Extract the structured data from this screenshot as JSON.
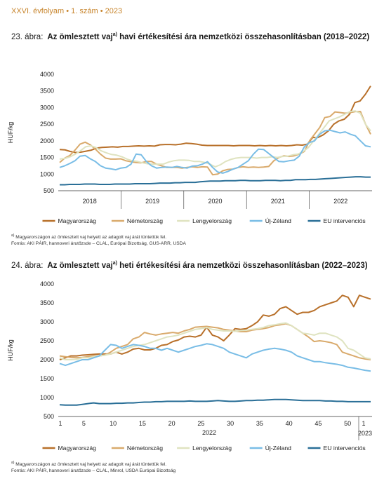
{
  "header": {
    "text": "XXVI. évfolyam • 1. szám • 2023"
  },
  "colors": {
    "Magyarország": "#b8702a",
    "Németország": "#d9aa6c",
    "Lengyelország": "#dfe3c0",
    "Új-Zéland": "#79bde6",
    "EU intervenciós": "#2a6f97"
  },
  "chart_data": [
    {
      "type": "line",
      "label_prefix": "23. ábra:",
      "title": "Az ömlesztett vaj",
      "title_sup": "a)",
      "title_rest": " havi értékesítési ára nemzetközi összehasonlításban (2018–2022)",
      "ylabel": "HUF/kg",
      "ylim": [
        500,
        4000
      ],
      "yticks": [
        500,
        1000,
        1500,
        2000,
        2500,
        3000,
        3500,
        4000
      ],
      "x_labels": [
        "2018",
        "2019",
        "2020",
        "2021",
        "2022"
      ],
      "footnote": "Magyarországon az ömlesztett vaj helyett az adagolt vaj árát tüntettük fel.",
      "footnote_sup": "a)",
      "source": "Forrás: AKI PÁIR, hannoveri árutőzsde – CLAL, Európai Bizottság, GUS-ARR, USDA",
      "series": [
        {
          "name": "Magyarország",
          "values": [
            1740,
            1730,
            1680,
            1650,
            1660,
            1690,
            1720,
            1780,
            1800,
            1810,
            1820,
            1810,
            1830,
            1830,
            1840,
            1850,
            1840,
            1850,
            1840,
            1880,
            1890,
            1890,
            1880,
            1900,
            1930,
            1920,
            1900,
            1870,
            1860,
            1860,
            1860,
            1860,
            1860,
            1850,
            1860,
            1860,
            1860,
            1850,
            1860,
            1850,
            1860,
            1850,
            1860,
            1850,
            1860,
            1880,
            1870,
            1900,
            2100,
            2100,
            2180,
            2300,
            2500,
            2600,
            2650,
            2800,
            3150,
            3200,
            3400,
            3650
          ]
        },
        {
          "name": "Németország",
          "values": [
            1350,
            1480,
            1560,
            1720,
            1900,
            1960,
            1880,
            1750,
            1600,
            1480,
            1450,
            1450,
            1460,
            1400,
            1370,
            1350,
            1340,
            1380,
            1380,
            1300,
            1250,
            1200,
            1200,
            1200,
            1180,
            1200,
            1220,
            1200,
            1220,
            1210,
            980,
            1000,
            1100,
            1140,
            1150,
            1200,
            1220,
            1200,
            1210,
            1200,
            1210,
            1230,
            1400,
            1500,
            1550,
            1530,
            1550,
            1600,
            1680,
            2000,
            2200,
            2400,
            2700,
            2730,
            2870,
            2850,
            2830,
            2850,
            2880,
            2880,
            2500,
            2200
          ]
        },
        {
          "name": "Lengyelország",
          "values": [
            1450,
            1470,
            1520,
            1600,
            1700,
            1820,
            1850,
            1800,
            1700,
            1640,
            1590,
            1570,
            1520,
            1450,
            1400,
            1380,
            1340,
            1310,
            1300,
            1300,
            1300,
            1360,
            1400,
            1420,
            1420,
            1410,
            1380,
            1380,
            1350,
            1300,
            1220,
            1280,
            1380,
            1440,
            1480,
            1500,
            1500,
            1500,
            1480,
            1500,
            1500,
            1520,
            1500,
            1530,
            1540,
            1580,
            1600,
            1680,
            1800,
            2000,
            2200,
            2400,
            2600,
            2660,
            2720,
            2800,
            2880,
            2900,
            2830,
            2500,
            2300
          ]
        },
        {
          "name": "Új-Zéland",
          "values": [
            1200,
            1250,
            1320,
            1400,
            1540,
            1560,
            1460,
            1380,
            1250,
            1180,
            1160,
            1130,
            1180,
            1200,
            1300,
            1600,
            1580,
            1380,
            1250,
            1180,
            1200,
            1210,
            1200,
            1230,
            1200,
            1180,
            1240,
            1250,
            1300,
            1370,
            1200,
            1060,
            1030,
            1080,
            1150,
            1200,
            1300,
            1400,
            1600,
            1750,
            1740,
            1620,
            1500,
            1380,
            1370,
            1400,
            1420,
            1540,
            1820,
            1950,
            2000,
            2200,
            2300,
            2320,
            2280,
            2240,
            2270,
            2200,
            2150,
            2000,
            1850,
            1820
          ]
        },
        {
          "name": "EU intervenciós",
          "values": [
            680,
            680,
            690,
            690,
            690,
            700,
            700,
            700,
            690,
            690,
            690,
            700,
            700,
            700,
            700,
            710,
            710,
            710,
            710,
            720,
            730,
            730,
            730,
            740,
            740,
            750,
            750,
            750,
            770,
            780,
            790,
            790,
            790,
            800,
            800,
            800,
            810,
            810,
            800,
            800,
            800,
            810,
            810,
            810,
            800,
            810,
            810,
            830,
            830,
            830,
            840,
            840,
            850,
            860,
            870,
            880,
            890,
            900,
            910,
            920,
            920,
            910,
            910
          ]
        }
      ]
    },
    {
      "type": "line",
      "label_prefix": "24. ábra:",
      "title": "Az ömlesztett vaj",
      "title_sup": "a)",
      "title_rest": " heti értékesítési ára nemzetközi összehasonlításban (2022–2023)",
      "ylabel": "HUF/kg",
      "ylim": [
        500,
        4000
      ],
      "yticks": [
        500,
        1000,
        1500,
        2000,
        2500,
        3000,
        3500,
        4000
      ],
      "x_ticks": [
        "1",
        "5",
        "10",
        "15",
        "20",
        "25",
        "30",
        "35",
        "40",
        "45",
        "50",
        "1"
      ],
      "x_year_labels": [
        "2022",
        "2023"
      ],
      "footnote": "Magyarországon az ömlesztett vaj helyett az adagolt vaj árát tüntettük fel.",
      "footnote_sup": "a)",
      "source": "Forrás: AKI PÁIR, hannoveri árutőzsde – CLAL, Minrol, USDA Európai Bizottság",
      "series": [
        {
          "name": "Magyarország",
          "values": [
            2000,
            2050,
            2100,
            2100,
            2120,
            2130,
            2140,
            2150,
            2150,
            2150,
            2200,
            2150,
            2200,
            2280,
            2300,
            2260,
            2260,
            2300,
            2380,
            2400,
            2480,
            2520,
            2600,
            2620,
            2600,
            2650,
            2860,
            2650,
            2600,
            2500,
            2650,
            2820,
            2800,
            2820,
            2900,
            3000,
            3180,
            3150,
            3200,
            3350,
            3400,
            3300,
            3200,
            3250,
            3250,
            3300,
            3400,
            3450,
            3500,
            3550,
            3700,
            3650,
            3400,
            3700,
            3650,
            3600
          ]
        },
        {
          "name": "Németország",
          "values": [
            2100,
            2080,
            2060,
            2050,
            2060,
            2080,
            2100,
            2100,
            2120,
            2200,
            2300,
            2350,
            2400,
            2550,
            2600,
            2720,
            2680,
            2650,
            2680,
            2700,
            2720,
            2700,
            2760,
            2800,
            2860,
            2870,
            2880,
            2860,
            2840,
            2800,
            2780,
            2760,
            2740,
            2740,
            2780,
            2800,
            2820,
            2850,
            2900,
            2920,
            2950,
            2900,
            2800,
            2700,
            2600,
            2480,
            2500,
            2480,
            2450,
            2400,
            2200,
            2150,
            2100,
            2050,
            2020,
            2000
          ]
        },
        {
          "name": "Lengyelország",
          "values": [
            2050,
            2000,
            2000,
            2010,
            2050,
            2050,
            2080,
            2100,
            2120,
            2150,
            2200,
            2250,
            2300,
            2350,
            2380,
            2400,
            2450,
            2500,
            2550,
            2600,
            2620,
            2650,
            2700,
            2750,
            2800,
            2820,
            2850,
            2800,
            2780,
            2760,
            2760,
            2750,
            2770,
            2780,
            2800,
            2820,
            2850,
            2900,
            2920,
            2950,
            2970,
            2900,
            2800,
            2700,
            2680,
            2650,
            2700,
            2700,
            2650,
            2600,
            2500,
            2300,
            2250,
            2150,
            2050,
            2020
          ]
        },
        {
          "name": "Új-Zéland",
          "values": [
            1900,
            1850,
            1900,
            1950,
            2000,
            2000,
            2050,
            2100,
            2250,
            2400,
            2380,
            2300,
            2350,
            2400,
            2380,
            2350,
            2300,
            2300,
            2250,
            2300,
            2250,
            2200,
            2250,
            2300,
            2350,
            2380,
            2420,
            2400,
            2350,
            2300,
            2200,
            2150,
            2100,
            2050,
            2150,
            2200,
            2250,
            2280,
            2300,
            2280,
            2250,
            2200,
            2100,
            2050,
            2000,
            1950,
            1950,
            1920,
            1900,
            1880,
            1850,
            1800,
            1780,
            1750,
            1720,
            1700
          ]
        },
        {
          "name": "EU intervenciós",
          "values": [
            810,
            800,
            800,
            800,
            820,
            840,
            860,
            840,
            840,
            840,
            850,
            850,
            860,
            860,
            870,
            880,
            880,
            890,
            890,
            900,
            900,
            900,
            900,
            910,
            900,
            900,
            900,
            910,
            920,
            910,
            900,
            900,
            910,
            920,
            920,
            930,
            930,
            940,
            950,
            950,
            950,
            940,
            930,
            920,
            920,
            920,
            920,
            910,
            910,
            900,
            900,
            890,
            890,
            890,
            890,
            890
          ]
        }
      ]
    }
  ]
}
